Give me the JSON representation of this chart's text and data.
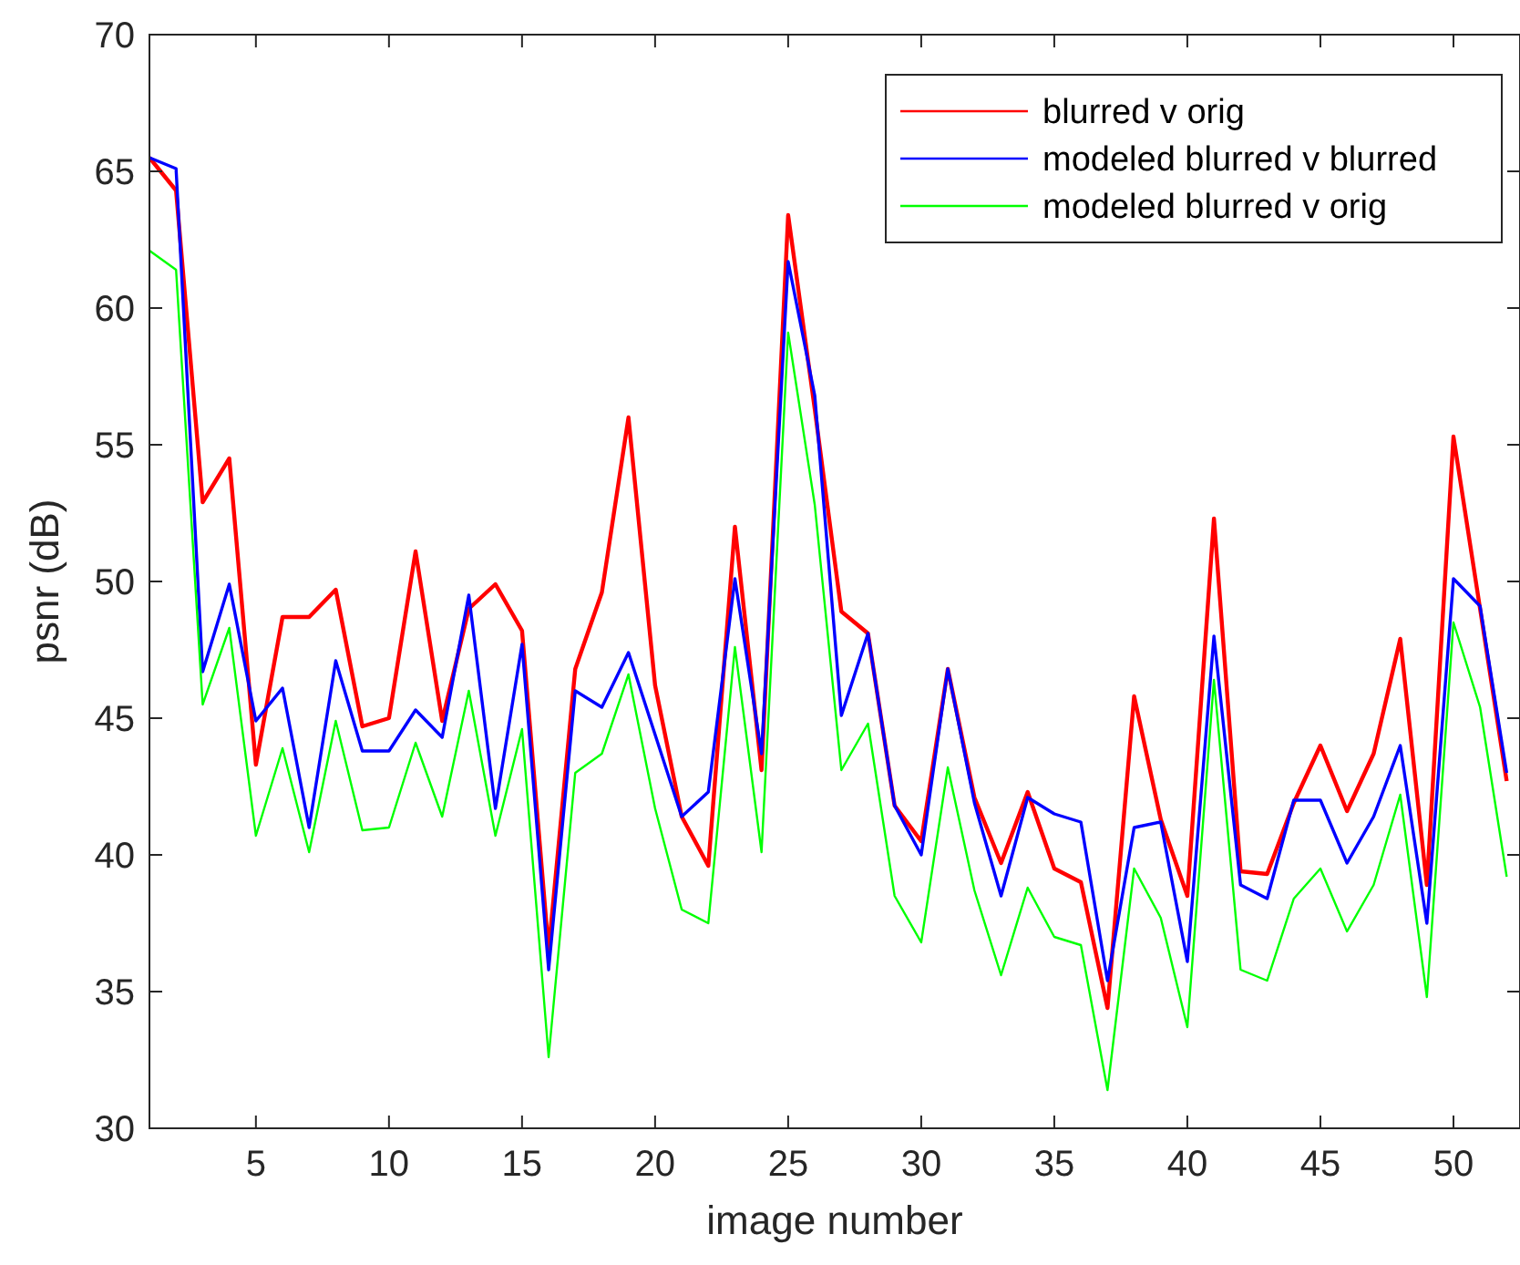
{
  "chart_data": {
    "type": "line",
    "xlabel": "image number",
    "ylabel": "psnr (dB)",
    "xlim": [
      1,
      52.5
    ],
    "xticks": [
      5,
      10,
      15,
      20,
      25,
      30,
      35,
      40,
      45,
      50
    ],
    "ylim": [
      30,
      70
    ],
    "yticks": [
      30,
      35,
      40,
      45,
      50,
      55,
      60,
      65,
      70
    ],
    "grid": false,
    "legend": "top right",
    "marker": "none",
    "line_style": "solid",
    "x": [
      1,
      2,
      3,
      4,
      5,
      6,
      7,
      8,
      9,
      10,
      11,
      12,
      13,
      14,
      15,
      16,
      17,
      18,
      19,
      20,
      21,
      22,
      23,
      24,
      25,
      26,
      27,
      28,
      29,
      30,
      31,
      32,
      33,
      34,
      35,
      36,
      37,
      38,
      39,
      40,
      41,
      42,
      43,
      44,
      45,
      46,
      47,
      48,
      49,
      50,
      51,
      52
    ],
    "series": [
      {
        "name": "blurred v orig",
        "color": "#ff0000",
        "values": [
          65.5,
          64.3,
          52.9,
          54.5,
          43.3,
          48.7,
          48.7,
          49.7,
          44.7,
          45.0,
          51.1,
          44.9,
          49.0,
          49.9,
          48.2,
          36.5,
          46.8,
          49.6,
          56.0,
          46.2,
          41.4,
          39.6,
          52.0,
          43.1,
          63.4,
          56.3,
          48.9,
          48.1,
          41.8,
          40.5,
          46.8,
          42.1,
          39.7,
          42.3,
          39.5,
          39.0,
          34.4,
          45.8,
          41.3,
          38.5,
          52.3,
          39.4,
          39.3,
          41.9,
          44.0,
          41.6,
          43.7,
          47.9,
          38.9,
          55.3,
          49.0,
          42.7
        ]
      },
      {
        "name": "modeled blurred v blurred",
        "color": "#0000ff",
        "values": [
          65.5,
          65.1,
          46.7,
          49.9,
          44.9,
          46.1,
          41.0,
          47.1,
          43.8,
          43.8,
          45.3,
          44.3,
          49.5,
          41.7,
          47.7,
          35.8,
          46.0,
          45.4,
          47.4,
          44.4,
          41.4,
          42.3,
          50.1,
          43.7,
          61.7,
          56.8,
          45.1,
          48.1,
          41.8,
          40.0,
          46.8,
          41.9,
          38.5,
          42.1,
          41.5,
          41.2,
          35.4,
          41.0,
          41.2,
          36.1,
          48.0,
          38.9,
          38.4,
          42.0,
          42.0,
          39.7,
          41.4,
          44.0,
          37.5,
          50.1,
          49.1,
          43.0
        ]
      },
      {
        "name": "modeled blurred v orig",
        "color": "#00ff00",
        "values": [
          62.1,
          61.4,
          45.5,
          48.3,
          40.7,
          43.9,
          40.1,
          44.9,
          40.9,
          41.0,
          44.1,
          41.4,
          46.0,
          40.7,
          44.6,
          32.6,
          43.0,
          43.7,
          46.6,
          41.7,
          38.0,
          37.5,
          47.6,
          40.1,
          59.1,
          52.8,
          43.1,
          44.8,
          38.5,
          36.8,
          43.2,
          38.7,
          35.6,
          38.8,
          37.0,
          36.7,
          31.4,
          39.5,
          37.7,
          33.7,
          46.4,
          35.8,
          35.4,
          38.4,
          39.5,
          37.2,
          38.9,
          42.2,
          34.8,
          48.5,
          45.4,
          39.2
        ]
      }
    ]
  }
}
